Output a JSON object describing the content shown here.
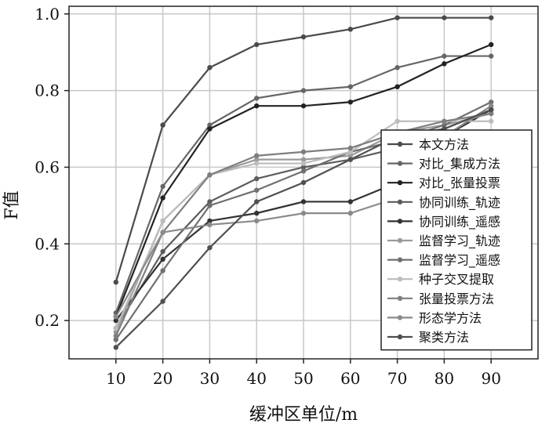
{
  "chart_data": {
    "type": "line",
    "title": "",
    "xlabel": "缓冲区单位/m",
    "ylabel": "F值",
    "xlim": [
      0,
      100
    ],
    "ylim": [
      0.1,
      1.02
    ],
    "grid": true,
    "legend_position": "right",
    "x": [
      10,
      20,
      30,
      40,
      50,
      60,
      70,
      80,
      90
    ],
    "x_ticks": [
      "10",
      "20",
      "30",
      "40",
      "50",
      "60",
      "70",
      "80",
      "90"
    ],
    "y_ticks": [
      "0.2",
      "0.4",
      "0.6",
      "0.8",
      "1.0"
    ],
    "y_tick_values": [
      0.2,
      0.4,
      0.6,
      0.8,
      1.0
    ],
    "series": [
      {
        "name": "本文方法",
        "color": "#4a4a4a",
        "values": [
          0.3,
          0.71,
          0.86,
          0.92,
          0.94,
          0.96,
          0.99,
          0.99,
          0.99
        ]
      },
      {
        "name": "对比_集成方法",
        "color": "#666666",
        "values": [
          0.22,
          0.55,
          0.71,
          0.78,
          0.8,
          0.81,
          0.86,
          0.89,
          0.89
        ]
      },
      {
        "name": "对比_张量投票",
        "color": "#222222",
        "values": [
          0.21,
          0.52,
          0.7,
          0.76,
          0.76,
          0.77,
          0.81,
          0.87,
          0.92
        ]
      },
      {
        "name": "协同训练_轨迹",
        "color": "#5c5c5c",
        "values": [
          0.18,
          0.38,
          0.51,
          0.57,
          0.6,
          0.62,
          0.65,
          0.7,
          0.75
        ]
      },
      {
        "name": "协同训练_遥感",
        "color": "#333333",
        "values": [
          0.2,
          0.36,
          0.46,
          0.48,
          0.51,
          0.51,
          0.56,
          0.68,
          0.75
        ]
      },
      {
        "name": "监督学习_轨迹",
        "color": "#9a9a9a",
        "values": [
          0.17,
          0.46,
          0.58,
          0.62,
          0.62,
          0.63,
          0.69,
          0.71,
          0.74
        ]
      },
      {
        "name": "监督学习_遥感",
        "color": "#707070",
        "values": [
          0.15,
          0.33,
          0.5,
          0.54,
          0.59,
          0.64,
          0.67,
          0.71,
          0.77
        ]
      },
      {
        "name": "种子交叉提取",
        "color": "#bcbcbc",
        "values": [
          0.18,
          0.46,
          0.58,
          0.61,
          0.61,
          0.64,
          0.72,
          0.72,
          0.72
        ]
      },
      {
        "name": "张量投票方法",
        "color": "#7e7e7e",
        "values": [
          0.16,
          0.43,
          0.58,
          0.63,
          0.64,
          0.65,
          0.69,
          0.72,
          0.74
        ]
      },
      {
        "name": "形态学方法",
        "color": "#8a8a8a",
        "values": [
          0.21,
          0.43,
          0.45,
          0.46,
          0.48,
          0.48,
          0.52,
          0.68,
          0.76
        ]
      },
      {
        "name": "聚类方法",
        "color": "#505050",
        "values": [
          0.13,
          0.25,
          0.39,
          0.51,
          0.56,
          0.62,
          0.68,
          0.7,
          0.75
        ]
      }
    ]
  }
}
